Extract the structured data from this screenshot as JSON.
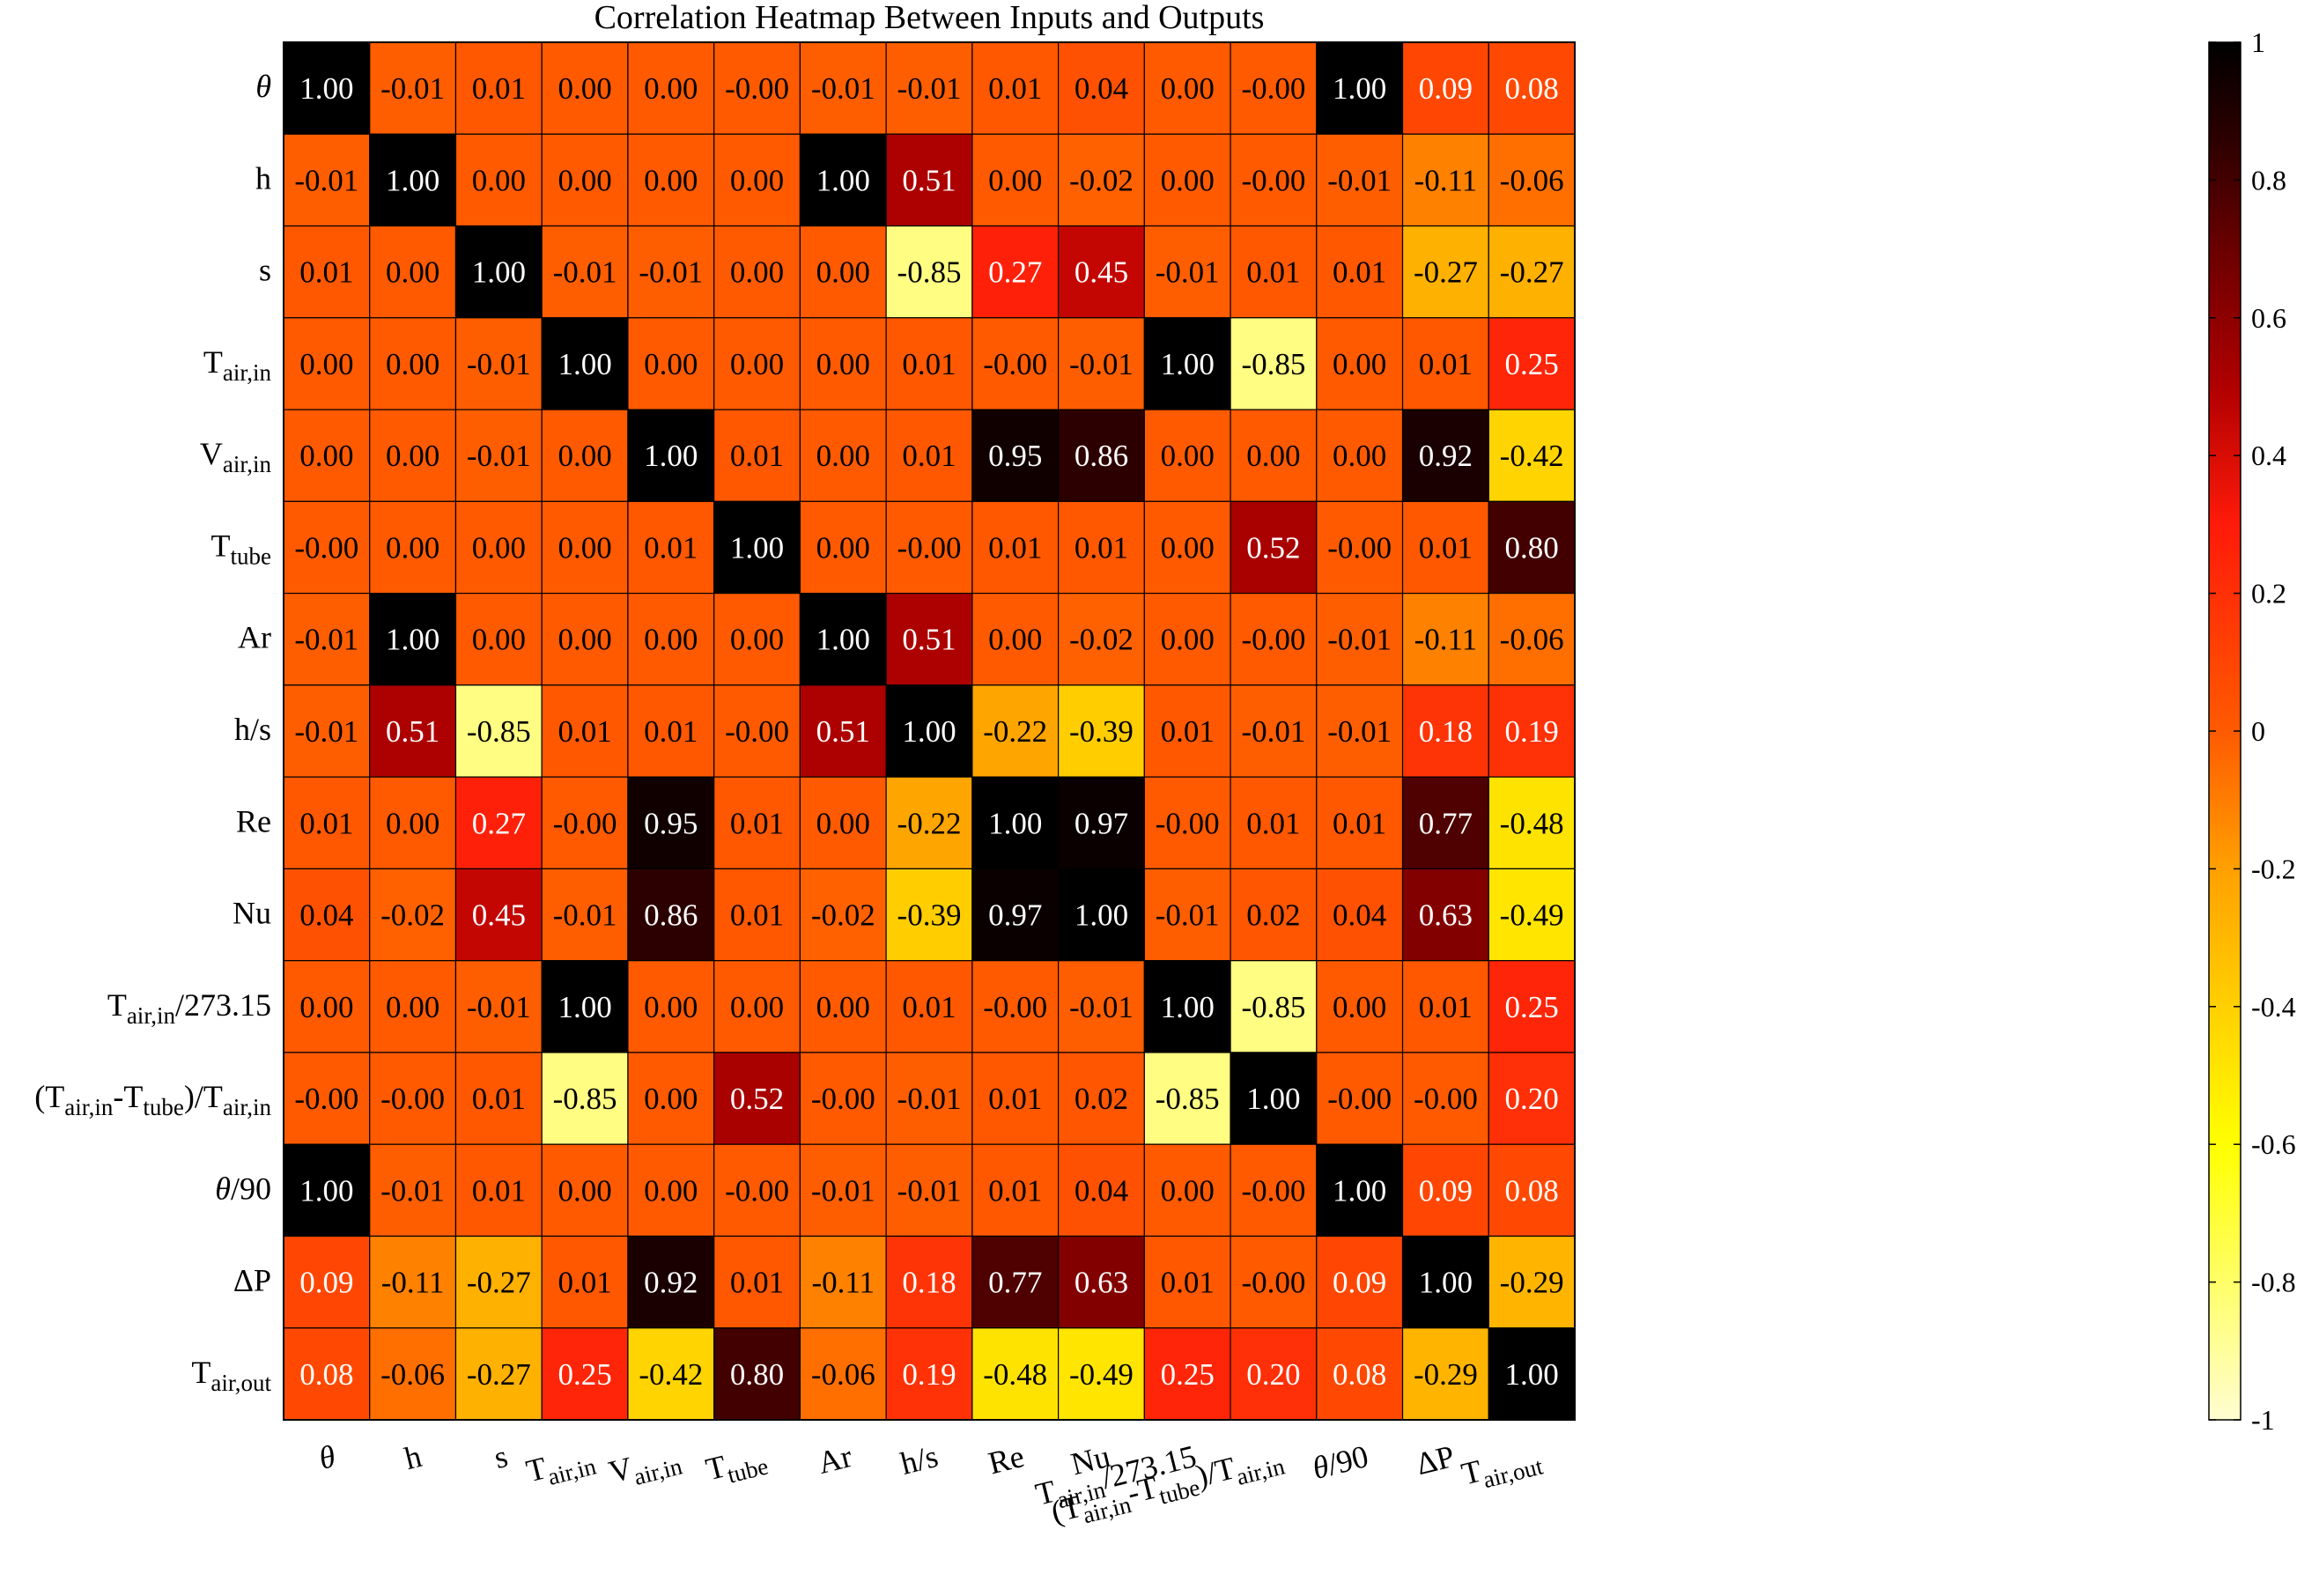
{
  "chart_data": {
    "type": "heatmap",
    "title": "Correlation Heatmap Between Inputs and Outputs",
    "labels": [
      {
        "id": "theta",
        "segments": [
          {
            "t": "θ",
            "i": true
          }
        ]
      },
      {
        "id": "h",
        "segments": [
          {
            "t": "h"
          }
        ]
      },
      {
        "id": "s",
        "segments": [
          {
            "t": "s"
          }
        ]
      },
      {
        "id": "t-air-in",
        "segments": [
          {
            "t": "T"
          },
          {
            "t": "air,in",
            "sub": true
          }
        ]
      },
      {
        "id": "v-air-in",
        "segments": [
          {
            "t": "V"
          },
          {
            "t": "air,in",
            "sub": true
          }
        ]
      },
      {
        "id": "t-tube",
        "segments": [
          {
            "t": "T"
          },
          {
            "t": "tube",
            "sub": true
          }
        ]
      },
      {
        "id": "ar",
        "segments": [
          {
            "t": "Ar"
          }
        ]
      },
      {
        "id": "h-over-s",
        "segments": [
          {
            "t": "h/s"
          }
        ]
      },
      {
        "id": "re",
        "segments": [
          {
            "t": "Re"
          }
        ]
      },
      {
        "id": "nu",
        "segments": [
          {
            "t": "Nu"
          }
        ]
      },
      {
        "id": "t-air-in-norm",
        "segments": [
          {
            "t": "T"
          },
          {
            "t": "air,in",
            "sub": true
          },
          {
            "t": "/273.15"
          }
        ]
      },
      {
        "id": "temp-ratio",
        "segments": [
          {
            "t": "(T"
          },
          {
            "t": "air,in",
            "sub": true
          },
          {
            "t": "-T"
          },
          {
            "t": "tube",
            "sub": true
          },
          {
            "t": ")/T"
          },
          {
            "t": "air,in",
            "sub": true
          }
        ]
      },
      {
        "id": "theta-norm",
        "segments": [
          {
            "t": "θ",
            "i": true
          },
          {
            "t": "/90"
          }
        ]
      },
      {
        "id": "delta-p",
        "segments": [
          {
            "t": "ΔP"
          }
        ]
      },
      {
        "id": "t-air-out",
        "segments": [
          {
            "t": "T"
          },
          {
            "t": "air,out",
            "sub": true
          }
        ]
      }
    ],
    "matrix": [
      [
        "1.00",
        "-0.01",
        "0.01",
        "0.00",
        "0.00",
        "-0.00",
        "-0.01",
        "-0.01",
        "0.01",
        "0.04",
        "0.00",
        "-0.00",
        "1.00",
        "0.09",
        "0.08"
      ],
      [
        "-0.01",
        "1.00",
        "0.00",
        "0.00",
        "0.00",
        "0.00",
        "1.00",
        "0.51",
        "0.00",
        "-0.02",
        "0.00",
        "-0.00",
        "-0.01",
        "-0.11",
        "-0.06"
      ],
      [
        "0.01",
        "0.00",
        "1.00",
        "-0.01",
        "-0.01",
        "0.00",
        "0.00",
        "-0.85",
        "0.27",
        "0.45",
        "-0.01",
        "0.01",
        "0.01",
        "-0.27",
        "-0.27"
      ],
      [
        "0.00",
        "0.00",
        "-0.01",
        "1.00",
        "0.00",
        "0.00",
        "0.00",
        "0.01",
        "-0.00",
        "-0.01",
        "1.00",
        "-0.85",
        "0.00",
        "0.01",
        "0.25"
      ],
      [
        "0.00",
        "0.00",
        "-0.01",
        "0.00",
        "1.00",
        "0.01",
        "0.00",
        "0.01",
        "0.95",
        "0.86",
        "0.00",
        "0.00",
        "0.00",
        "0.92",
        "-0.42"
      ],
      [
        "-0.00",
        "0.00",
        "0.00",
        "0.00",
        "0.01",
        "1.00",
        "0.00",
        "-0.00",
        "0.01",
        "0.01",
        "0.00",
        "0.52",
        "-0.00",
        "0.01",
        "0.80"
      ],
      [
        "-0.01",
        "1.00",
        "0.00",
        "0.00",
        "0.00",
        "0.00",
        "1.00",
        "0.51",
        "0.00",
        "-0.02",
        "0.00",
        "-0.00",
        "-0.01",
        "-0.11",
        "-0.06"
      ],
      [
        "-0.01",
        "0.51",
        "-0.85",
        "0.01",
        "0.01",
        "-0.00",
        "0.51",
        "1.00",
        "-0.22",
        "-0.39",
        "0.01",
        "-0.01",
        "-0.01",
        "0.18",
        "0.19"
      ],
      [
        "0.01",
        "0.00",
        "0.27",
        "-0.00",
        "0.95",
        "0.01",
        "0.00",
        "-0.22",
        "1.00",
        "0.97",
        "-0.00",
        "0.01",
        "0.01",
        "0.77",
        "-0.48"
      ],
      [
        "0.04",
        "-0.02",
        "0.45",
        "-0.01",
        "0.86",
        "0.01",
        "-0.02",
        "-0.39",
        "0.97",
        "1.00",
        "-0.01",
        "0.02",
        "0.04",
        "0.63",
        "-0.49"
      ],
      [
        "0.00",
        "0.00",
        "-0.01",
        "1.00",
        "0.00",
        "0.00",
        "0.00",
        "0.01",
        "-0.00",
        "-0.01",
        "1.00",
        "-0.85",
        "0.00",
        "0.01",
        "0.25"
      ],
      [
        "-0.00",
        "-0.00",
        "0.01",
        "-0.85",
        "0.00",
        "0.52",
        "-0.00",
        "-0.01",
        "0.01",
        "0.02",
        "-0.85",
        "1.00",
        "-0.00",
        "-0.00",
        "0.20"
      ],
      [
        "1.00",
        "-0.01",
        "0.01",
        "0.00",
        "0.00",
        "-0.00",
        "-0.01",
        "-0.01",
        "0.01",
        "0.04",
        "0.00",
        "-0.00",
        "1.00",
        "0.09",
        "0.08"
      ],
      [
        "0.09",
        "-0.11",
        "-0.27",
        "0.01",
        "0.92",
        "0.01",
        "-0.11",
        "0.18",
        "0.77",
        "0.63",
        "0.01",
        "-0.00",
        "0.09",
        "1.00",
        "-0.29"
      ],
      [
        "0.08",
        "-0.06",
        "-0.27",
        "0.25",
        "-0.42",
        "0.80",
        "-0.06",
        "0.19",
        "-0.48",
        "-0.49",
        "0.25",
        "0.20",
        "0.08",
        "-0.29",
        "1.00"
      ]
    ],
    "colorbar": {
      "range": [
        -1,
        1
      ],
      "ticks": [
        "1",
        "0.8",
        "0.6",
        "0.4",
        "0.2",
        "0",
        "-0.2",
        "-0.4",
        "-0.6",
        "-0.8",
        "-1"
      ],
      "colormap": "hot-reversed",
      "stops": [
        {
          "v": -1.0,
          "color": "#fffdd0"
        },
        {
          "v": -0.6,
          "color": "#ffff00"
        },
        {
          "v": -0.2,
          "color": "#ffa000"
        },
        {
          "v": 0.0,
          "color": "#ff5a00"
        },
        {
          "v": 0.3,
          "color": "#ff1a0a"
        },
        {
          "v": 0.5,
          "color": "#b00000"
        },
        {
          "v": 0.7,
          "color": "#6a0000"
        },
        {
          "v": 0.85,
          "color": "#300000"
        },
        {
          "v": 1.0,
          "color": "#000000"
        }
      ]
    },
    "grid": true
  }
}
